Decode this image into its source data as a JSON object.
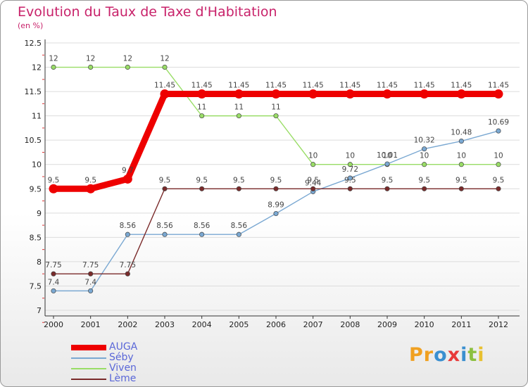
{
  "title": "Evolution du Taux de Taxe d'Habitation",
  "subtitle": "(en %)",
  "logo": {
    "text": "Proxiti",
    "letters": [
      {
        "ch": "P",
        "color": "#f0a020"
      },
      {
        "ch": "r",
        "color": "#f0a020"
      },
      {
        "ch": "o",
        "color": "#3a8fd0"
      },
      {
        "ch": "x",
        "color": "#e83a3a"
      },
      {
        "ch": "i",
        "color": "#3a8fd0"
      },
      {
        "ch": "t",
        "color": "#8cc040"
      },
      {
        "ch": "i",
        "color": "#e8c030"
      }
    ]
  },
  "chart_data": {
    "type": "line",
    "x": [
      "2000",
      "2001",
      "2002",
      "2003",
      "2004",
      "2005",
      "2006",
      "2007",
      "2008",
      "2009",
      "2010",
      "2011",
      "2012"
    ],
    "ylim": [
      7,
      12.5
    ],
    "yticks": [
      "7",
      "7.5",
      "8",
      "8.5",
      "9",
      "9.5",
      "10",
      "10.5",
      "11",
      "11.5",
      "12",
      "12.5"
    ],
    "grid": "horizontal",
    "legend_position": "bottom-left",
    "series": [
      {
        "name": "AUGA",
        "color": "#ee0000",
        "values": [
          9.5,
          9.5,
          9.7,
          11.45,
          11.45,
          11.45,
          11.45,
          11.45,
          11.45,
          11.45,
          11.45,
          11.45,
          11.45
        ],
        "labels": [
          "9.5",
          "9.5",
          "9.7",
          "11.45",
          "11.45",
          "11.45",
          "11.45",
          "11.45",
          "11.45",
          "11.45",
          "11.45",
          "11.45",
          "11.45"
        ]
      },
      {
        "name": "Séby",
        "color": "#7aa8d2",
        "values": [
          7.4,
          7.4,
          8.56,
          8.56,
          8.56,
          8.56,
          8.99,
          9.44,
          9.72,
          10.01,
          10.32,
          10.48,
          10.69
        ],
        "labels": [
          "7.4",
          "7.4",
          "8.56",
          "8.56",
          "8.56",
          "8.56",
          "8.99",
          "9.44",
          "9.72",
          "10.01",
          "10.32",
          "10.48",
          "10.69"
        ]
      },
      {
        "name": "Viven",
        "color": "#99dd66",
        "values": [
          12,
          12,
          12,
          12,
          11,
          11,
          11,
          10,
          10,
          10,
          10,
          10,
          10
        ],
        "labels": [
          "12",
          "12",
          "12",
          "12",
          "11",
          "11",
          "11",
          "10",
          "10",
          "10",
          "10",
          "10",
          "10"
        ]
      },
      {
        "name": "Lème",
        "color": "#7a2a2a",
        "values": [
          7.75,
          7.75,
          7.75,
          9.5,
          9.5,
          9.5,
          9.5,
          9.5,
          9.5,
          9.5,
          9.5,
          9.5,
          9.5
        ],
        "labels": [
          "7.75",
          "7.75",
          "7.75",
          "9.5",
          "9.5",
          "9.5",
          "9.5",
          "9.5",
          "9.5",
          "9.5",
          "9.5",
          "9.5",
          "9.5"
        ]
      }
    ]
  }
}
